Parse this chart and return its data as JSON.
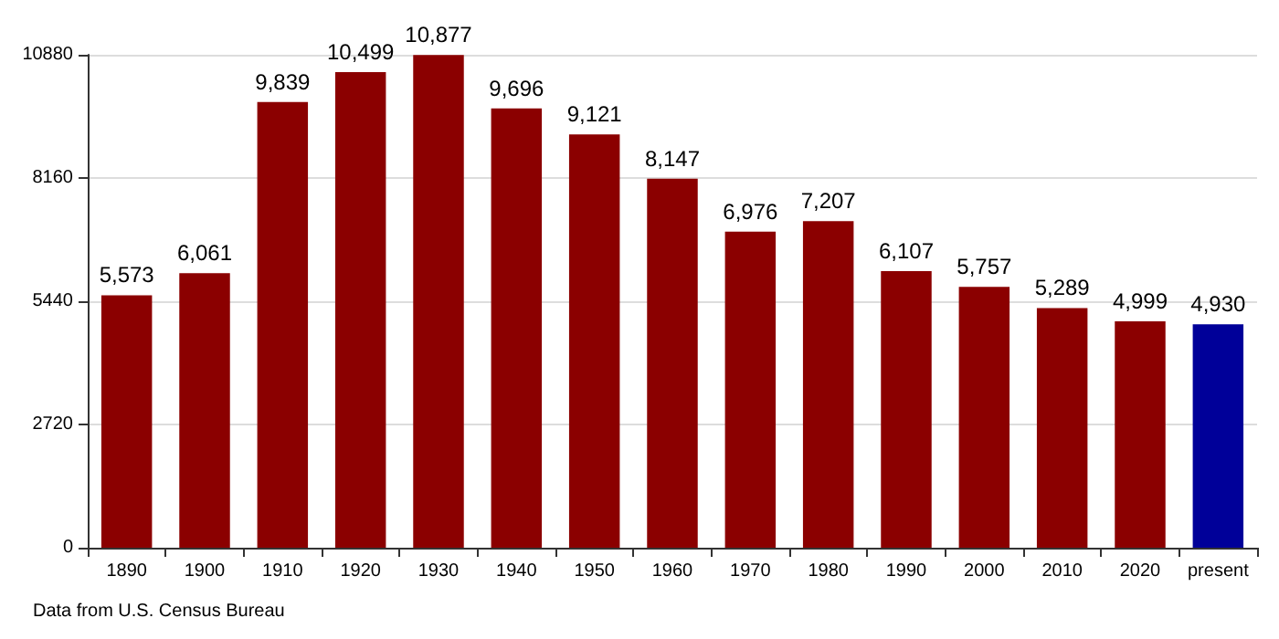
{
  "chart_data": {
    "type": "bar",
    "categories": [
      "1890",
      "1900",
      "1910",
      "1920",
      "1930",
      "1940",
      "1950",
      "1960",
      "1970",
      "1980",
      "1990",
      "2000",
      "2010",
      "2020",
      "present"
    ],
    "values": [
      5573,
      6061,
      9839,
      10499,
      10877,
      9696,
      9121,
      8147,
      6976,
      7207,
      6107,
      5757,
      5289,
      4999,
      4930
    ],
    "value_labels": [
      "5,573",
      "6,061",
      "9,839",
      "10,499",
      "10,877",
      "9,696",
      "9,121",
      "8,147",
      "6,976",
      "7,207",
      "6,107",
      "5,757",
      "5,289",
      "4,999",
      "4,930"
    ],
    "colors": [
      "#8b0000",
      "#8b0000",
      "#8b0000",
      "#8b0000",
      "#8b0000",
      "#8b0000",
      "#8b0000",
      "#8b0000",
      "#8b0000",
      "#8b0000",
      "#8b0000",
      "#8b0000",
      "#8b0000",
      "#8b0000",
      "#000099"
    ],
    "ylim": [
      0,
      10880
    ],
    "yticks": [
      0,
      2720,
      5440,
      8160,
      10880
    ],
    "grid": "y",
    "annotations": [
      "Data from U.S. Census Bureau"
    ]
  }
}
